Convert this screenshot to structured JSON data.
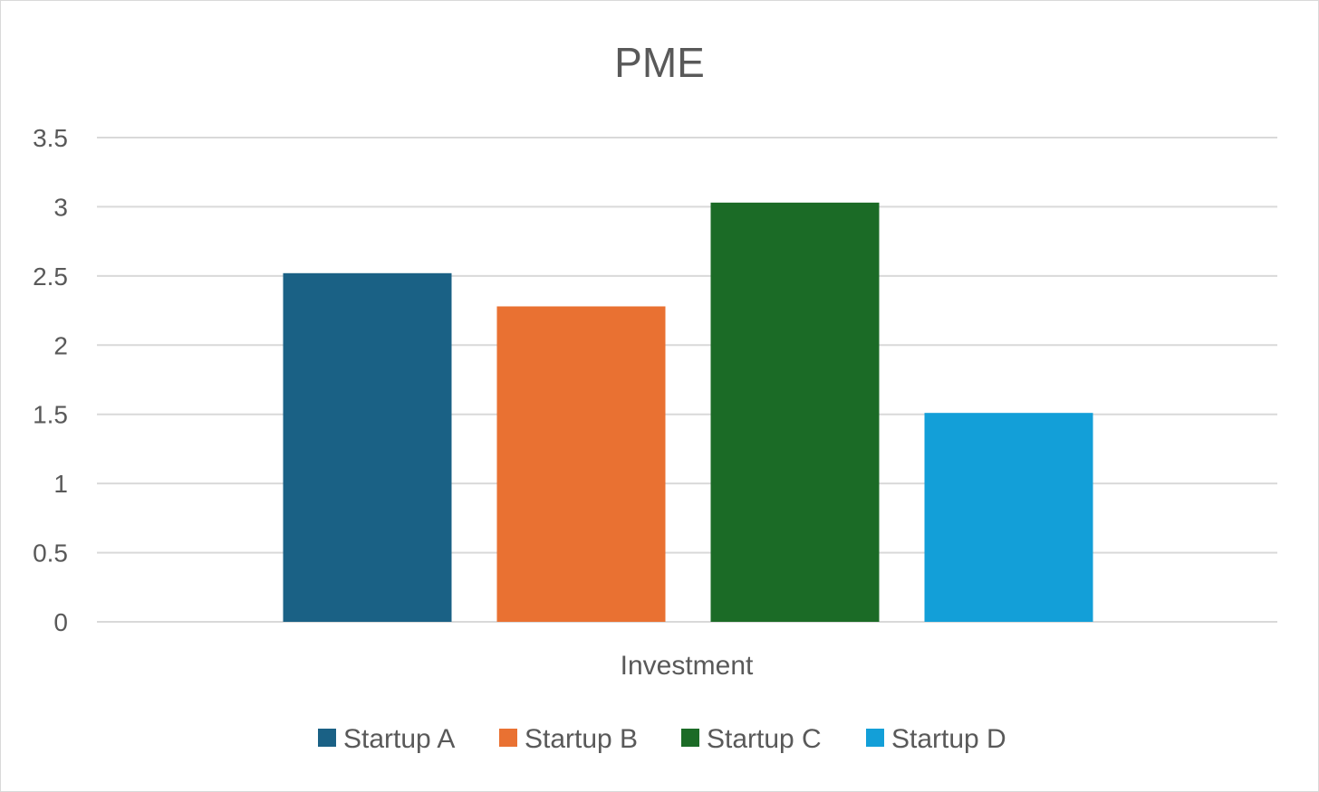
{
  "chart_data": {
    "type": "bar",
    "title": "PME",
    "categories": [
      "Investment"
    ],
    "series": [
      {
        "name": "Startup A",
        "values": [
          2.52
        ],
        "color": "#1a6185"
      },
      {
        "name": "Startup B",
        "values": [
          2.28
        ],
        "color": "#e97132"
      },
      {
        "name": "Startup C",
        "values": [
          3.03
        ],
        "color": "#1b6b26"
      },
      {
        "name": "Startup D",
        "values": [
          1.51
        ],
        "color": "#139fd8"
      }
    ],
    "xlabel": "",
    "ylabel": "",
    "ylim": [
      0,
      3.5
    ],
    "yticks": [
      "0",
      "0.5",
      "1",
      "1.5",
      "2",
      "2.5",
      "3",
      "3.5"
    ],
    "ytick_values": [
      0,
      0.5,
      1,
      1.5,
      2,
      2.5,
      3,
      3.5
    ],
    "grid": true,
    "legend_position": "bottom"
  }
}
